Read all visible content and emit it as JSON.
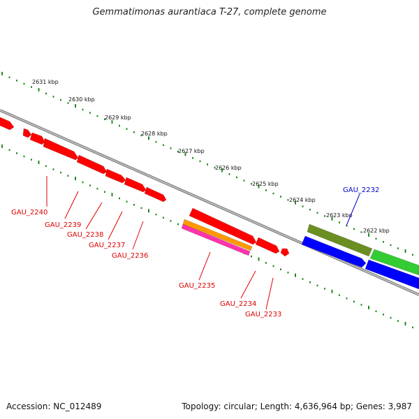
{
  "title": "Gemmatimonas aurantiaca T-27, complete genome",
  "footer": {
    "accession": "Accession: NC_012489",
    "summary": "Topology: circular; Length: 4,636,964 bp; Genes: 3,987"
  },
  "kbp_ticks": [
    {
      "label": "2631 kbp"
    },
    {
      "label": "2630 kbp"
    },
    {
      "label": "2629 kbp"
    },
    {
      "label": "2628 kbp"
    },
    {
      "label": "2627 kbp"
    },
    {
      "label": "2626 kbp"
    },
    {
      "label": "2625 kbp"
    },
    {
      "label": "2624 kbp"
    },
    {
      "label": "2623 kbp"
    },
    {
      "label": "2622 kbp"
    }
  ],
  "gene_labels": [
    {
      "label": "GAU_2240",
      "color": "#dd0000"
    },
    {
      "label": "GAU_2239",
      "color": "#dd0000"
    },
    {
      "label": "GAU_2238",
      "color": "#dd0000"
    },
    {
      "label": "GAU_2237",
      "color": "#dd0000"
    },
    {
      "label": "GAU_2236",
      "color": "#dd0000"
    },
    {
      "label": "GAU_2235",
      "color": "#dd0000"
    },
    {
      "label": "GAU_2234",
      "color": "#dd0000"
    },
    {
      "label": "GAU_2233",
      "color": "#dd0000"
    },
    {
      "label": "GAU_2232",
      "color": "#0000cc"
    }
  ],
  "colors": {
    "red_gene": "#ff0000",
    "orange_gene": "#ff9900",
    "magenta_gene": "#ff33aa",
    "olive_gene": "#6b8e23",
    "green_gene": "#33cc33",
    "blue_gene": "#0000ff",
    "tick_dots": "#228b22",
    "backbone": "#888888"
  }
}
